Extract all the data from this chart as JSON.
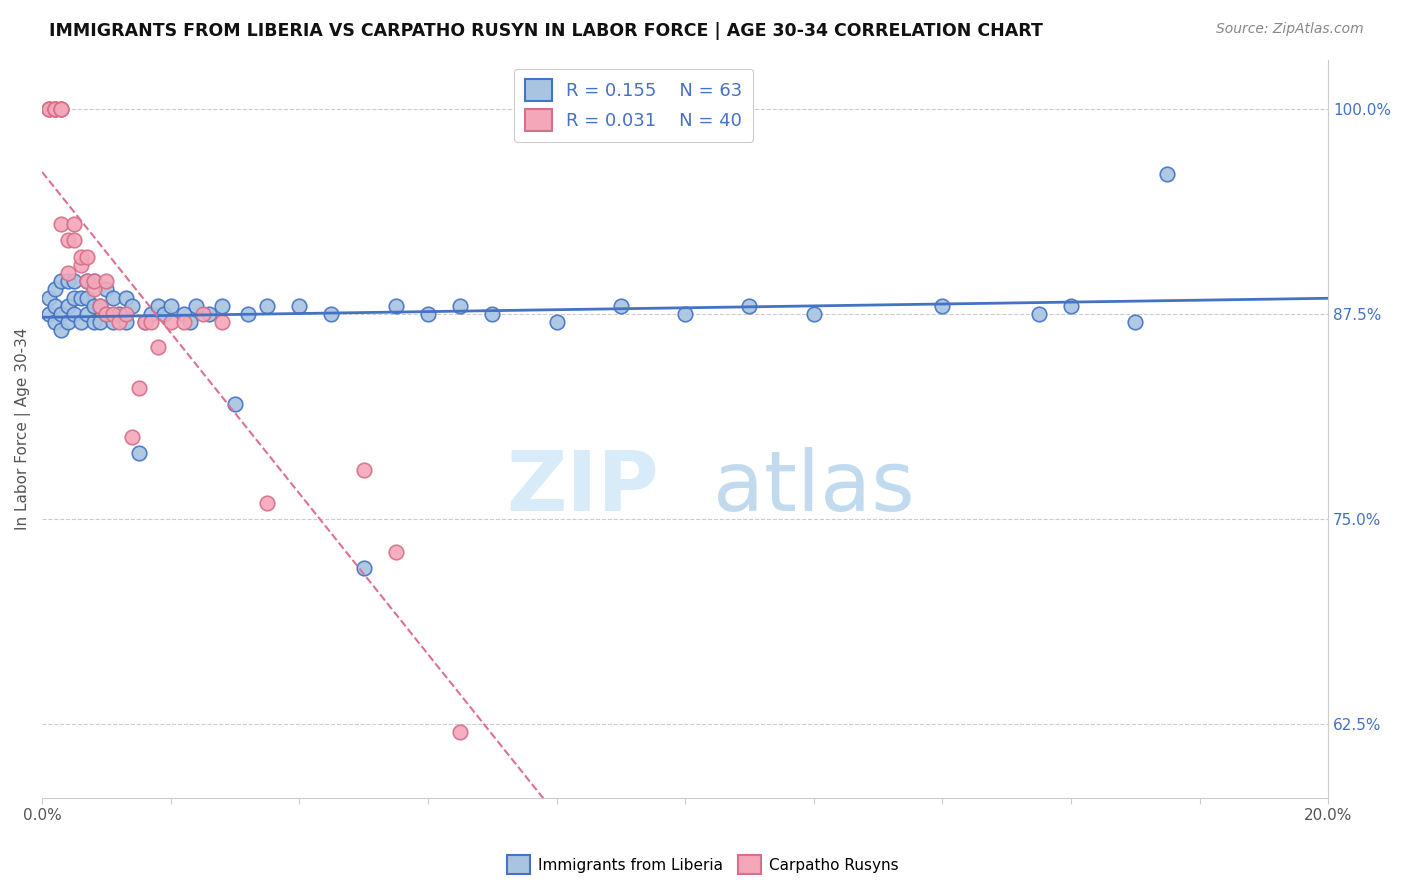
{
  "title": "IMMIGRANTS FROM LIBERIA VS CARPATHO RUSYN IN LABOR FORCE | AGE 30-34 CORRELATION CHART",
  "source": "Source: ZipAtlas.com",
  "ylabel": "In Labor Force | Age 30-34",
  "xlim": [
    0.0,
    0.2
  ],
  "ylim": [
    0.58,
    1.03
  ],
  "yticks_right": [
    0.625,
    0.75,
    0.875,
    1.0
  ],
  "ytick_right_labels": [
    "62.5%",
    "75.0%",
    "87.5%",
    "100.0%"
  ],
  "color_liberia": "#a8c4e0",
  "color_rusyn": "#f4a7b9",
  "color_liberia_line": "#4472c4",
  "color_rusyn_line": "#e07090",
  "color_right_axis": "#4472c4",
  "liberia_x": [
    0.001,
    0.001,
    0.002,
    0.002,
    0.002,
    0.003,
    0.003,
    0.003,
    0.004,
    0.004,
    0.004,
    0.005,
    0.005,
    0.005,
    0.006,
    0.006,
    0.007,
    0.007,
    0.007,
    0.008,
    0.008,
    0.008,
    0.009,
    0.009,
    0.01,
    0.01,
    0.011,
    0.011,
    0.012,
    0.013,
    0.013,
    0.014,
    0.015,
    0.016,
    0.017,
    0.018,
    0.019,
    0.02,
    0.022,
    0.023,
    0.024,
    0.026,
    0.028,
    0.03,
    0.032,
    0.035,
    0.04,
    0.045,
    0.05,
    0.055,
    0.06,
    0.065,
    0.07,
    0.08,
    0.09,
    0.1,
    0.11,
    0.12,
    0.14,
    0.155,
    0.16,
    0.17,
    0.175
  ],
  "liberia_y": [
    0.875,
    0.885,
    0.87,
    0.88,
    0.89,
    0.865,
    0.875,
    0.895,
    0.87,
    0.88,
    0.895,
    0.875,
    0.885,
    0.895,
    0.87,
    0.885,
    0.875,
    0.885,
    0.895,
    0.87,
    0.88,
    0.895,
    0.87,
    0.88,
    0.875,
    0.89,
    0.87,
    0.885,
    0.875,
    0.885,
    0.87,
    0.88,
    0.79,
    0.87,
    0.875,
    0.88,
    0.875,
    0.88,
    0.875,
    0.87,
    0.88,
    0.875,
    0.88,
    0.82,
    0.875,
    0.88,
    0.88,
    0.875,
    0.72,
    0.88,
    0.875,
    0.88,
    0.875,
    0.87,
    0.88,
    0.875,
    0.88,
    0.875,
    0.88,
    0.875,
    0.88,
    0.87,
    0.96
  ],
  "rusyn_x": [
    0.001,
    0.001,
    0.001,
    0.002,
    0.002,
    0.002,
    0.002,
    0.003,
    0.003,
    0.003,
    0.003,
    0.004,
    0.004,
    0.005,
    0.005,
    0.006,
    0.006,
    0.007,
    0.007,
    0.008,
    0.008,
    0.009,
    0.01,
    0.01,
    0.011,
    0.012,
    0.013,
    0.014,
    0.015,
    0.016,
    0.017,
    0.018,
    0.02,
    0.022,
    0.025,
    0.028,
    0.035,
    0.05,
    0.055,
    0.065
  ],
  "rusyn_y": [
    1.0,
    1.0,
    1.0,
    1.0,
    1.0,
    1.0,
    1.0,
    1.0,
    1.0,
    1.0,
    0.93,
    0.92,
    0.9,
    0.93,
    0.92,
    0.905,
    0.91,
    0.895,
    0.91,
    0.89,
    0.895,
    0.88,
    0.875,
    0.895,
    0.875,
    0.87,
    0.875,
    0.8,
    0.83,
    0.87,
    0.87,
    0.855,
    0.87,
    0.87,
    0.875,
    0.87,
    0.76,
    0.78,
    0.73,
    0.62
  ]
}
